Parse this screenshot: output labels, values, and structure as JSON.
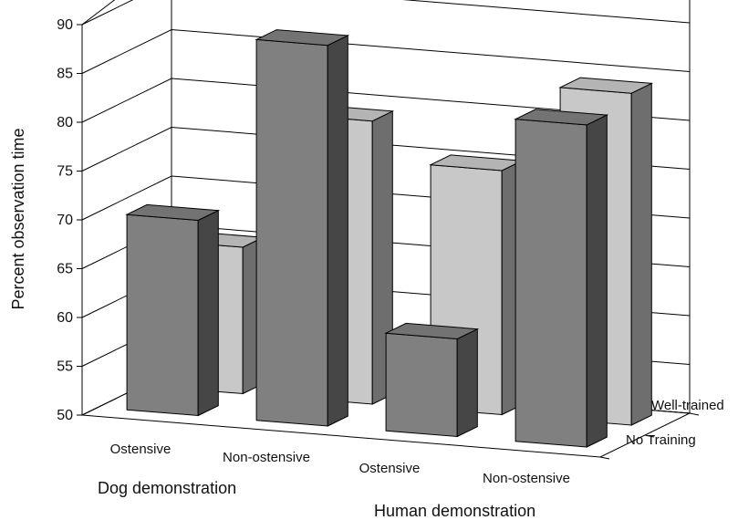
{
  "chart_data": {
    "type": "bar",
    "subtype": "3d-clustered",
    "ylabel": "Percent observation time",
    "ylim": [
      50,
      90
    ],
    "yticks": [
      "50",
      "55",
      "60",
      "65",
      "70",
      "75",
      "80",
      "85",
      "90"
    ],
    "categories": [
      "Ostensive",
      "Non-ostensive",
      "Ostensive",
      "Non-ostensive"
    ],
    "groups": [
      {
        "label": "Dog demonstration",
        "categories": [
          0,
          1
        ]
      },
      {
        "label": "Human demonstration",
        "categories": [
          2,
          3
        ]
      }
    ],
    "series": [
      {
        "name": "No Training",
        "values": [
          70,
          89,
          60,
          83
        ],
        "color": "#808080"
      },
      {
        "name": "Well-trained",
        "values": [
          65,
          79,
          75,
          84
        ],
        "color": "#c8c8c8"
      }
    ],
    "grid": true
  }
}
